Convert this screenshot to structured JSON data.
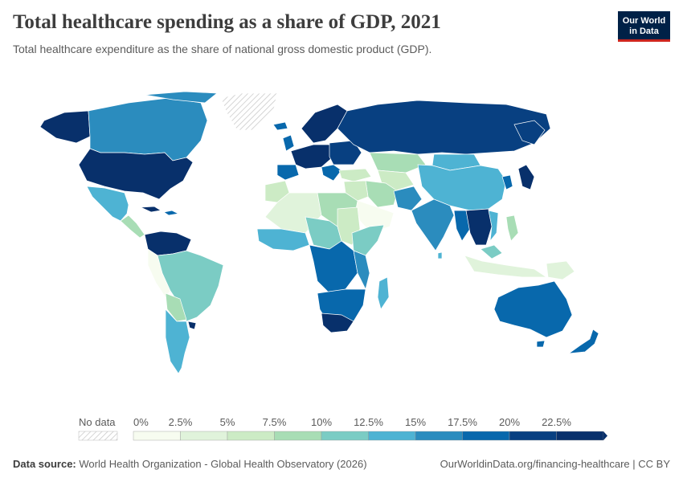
{
  "header": {
    "title": "Total healthcare spending as a share of GDP, 2021",
    "subtitle": "Total healthcare expenditure as the share of national gross domestic product (GDP).",
    "logo_line1": "Our World",
    "logo_line2": "in Data"
  },
  "legend": {
    "no_data_label": "No data",
    "ticks": [
      "0%",
      "2.5%",
      "5%",
      "7.5%",
      "10%",
      "12.5%",
      "15%",
      "17.5%",
      "20%",
      "22.5%"
    ],
    "colors": [
      "#f7fcf0",
      "#e0f3db",
      "#ccebc5",
      "#a8ddb5",
      "#7bccc4",
      "#4eb3d3",
      "#2b8cbe",
      "#0868ac",
      "#084081",
      "#08306b"
    ]
  },
  "footer": {
    "source_label": "Data source:",
    "source_text": "World Health Organization - Global Health Observatory (2026)",
    "link_text": "OurWorldinData.org/financing-healthcare | CC BY"
  },
  "colors": {
    "no_data": "#e8e8e8",
    "border": "#ffffff"
  }
}
